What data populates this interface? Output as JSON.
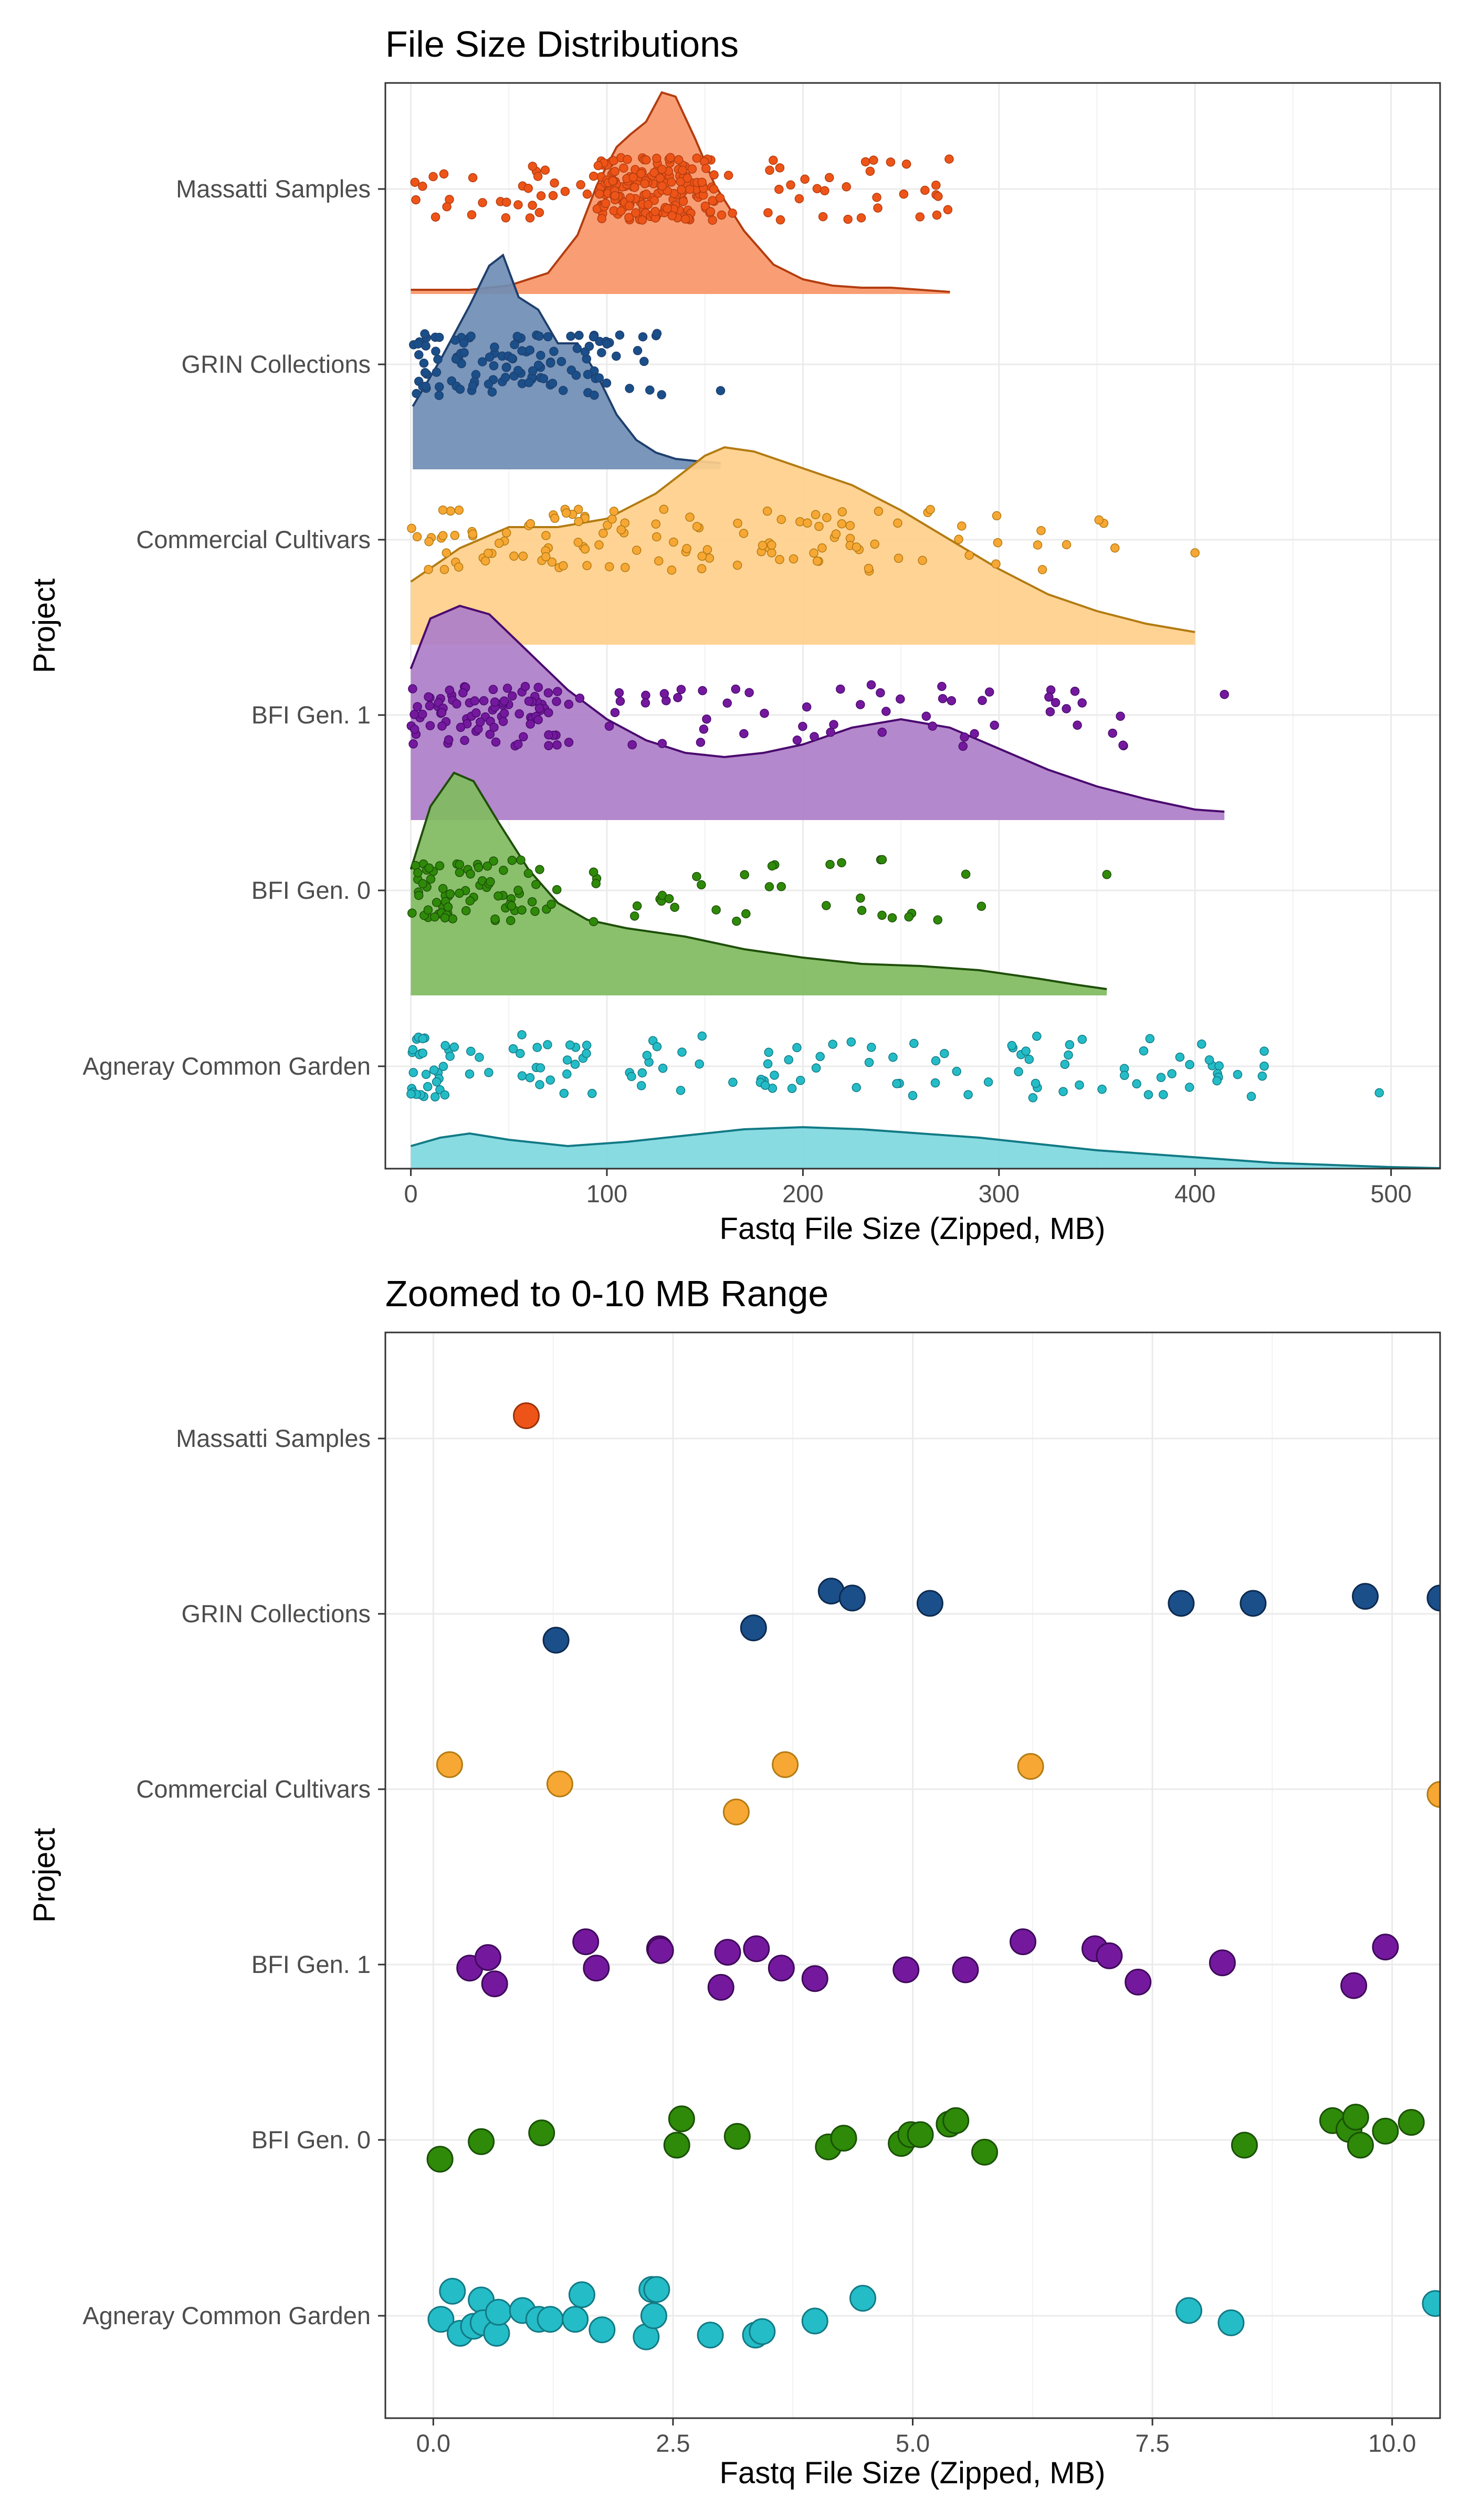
{
  "chart_data": [
    {
      "type": "raincloud",
      "title": "File Size Distributions",
      "xlabel": "Fastq File Size (Zipped, MB)",
      "ylabel": "Project",
      "xlim": [
        -13,
        525
      ],
      "xticks": [
        "0",
        "100",
        "200",
        "300",
        "400",
        "500"
      ],
      "xtick_values": [
        0,
        100,
        200,
        300,
        400,
        500
      ],
      "grid": true,
      "legend": "none",
      "categories": [
        "Massatti Samples",
        "GRIN Collections",
        "Commercial Cultivars",
        "BFI Gen. 1",
        "BFI Gen. 0",
        "Agneray Common Garden"
      ],
      "series": [
        {
          "name": "Massatti Samples",
          "fill": "#f99668",
          "line": "#b33d10",
          "point": "#ee5418",
          "range": [
            0,
            275
          ],
          "density": [
            [
              0,
              0.02
            ],
            [
              30,
              0.02
            ],
            [
              50,
              0.04
            ],
            [
              70,
              0.1
            ],
            [
              85,
              0.28
            ],
            [
              95,
              0.52
            ],
            [
              105,
              0.7
            ],
            [
              112,
              0.76
            ],
            [
              120,
              0.82
            ],
            [
              128,
              0.96
            ],
            [
              135,
              0.94
            ],
            [
              145,
              0.74
            ],
            [
              155,
              0.52
            ],
            [
              170,
              0.3
            ],
            [
              185,
              0.14
            ],
            [
              200,
              0.07
            ],
            [
              215,
              0.04
            ],
            [
              230,
              0.03
            ],
            [
              245,
              0.03
            ],
            [
              260,
              0.02
            ],
            [
              275,
              0.01
            ]
          ],
          "points_seed": 11,
          "points_n": 260,
          "points_dist": [
            [
              95,
              155,
              0.74
            ],
            [
              0,
              95,
              0.12
            ],
            [
              155,
              275,
              0.14
            ]
          ]
        },
        {
          "name": "GRIN Collections",
          "fill": "#6f8db4",
          "line": "#1e3f6d",
          "point": "#1b4f8a",
          "range": [
            1,
            158
          ],
          "density": [
            [
              1,
              0.3
            ],
            [
              15,
              0.52
            ],
            [
              30,
              0.78
            ],
            [
              40,
              0.97
            ],
            [
              47,
              1.02
            ],
            [
              55,
              0.82
            ],
            [
              65,
              0.76
            ],
            [
              75,
              0.6
            ],
            [
              85,
              0.6
            ],
            [
              95,
              0.45
            ],
            [
              105,
              0.26
            ],
            [
              115,
              0.14
            ],
            [
              125,
              0.08
            ],
            [
              135,
              0.05
            ],
            [
              145,
              0.04
            ],
            [
              158,
              0.03
            ]
          ],
          "points_seed": 23,
          "points_n": 120,
          "points_dist": [
            [
              0,
              100,
              0.9
            ],
            [
              100,
              130,
              0.1
            ]
          ],
          "extra_points": [
            158
          ]
        },
        {
          "name": "Commercial Cultivars",
          "fill": "#ffcf8a",
          "line": "#b37b12",
          "point": "#f7a733",
          "range": [
            0,
            400
          ],
          "density": [
            [
              0,
              0.3
            ],
            [
              25,
              0.46
            ],
            [
              50,
              0.56
            ],
            [
              75,
              0.56
            ],
            [
              100,
              0.6
            ],
            [
              125,
              0.72
            ],
            [
              150,
              0.9
            ],
            [
              160,
              0.94
            ],
            [
              175,
              0.92
            ],
            [
              200,
              0.84
            ],
            [
              225,
              0.76
            ],
            [
              250,
              0.64
            ],
            [
              275,
              0.5
            ],
            [
              300,
              0.36
            ],
            [
              325,
              0.24
            ],
            [
              350,
              0.16
            ],
            [
              375,
              0.1
            ],
            [
              400,
              0.06
            ]
          ],
          "points_seed": 37,
          "points_n": 130,
          "points_dist": [
            [
              0,
              240,
              0.86
            ],
            [
              240,
              360,
              0.14
            ]
          ],
          "extra_points": [
            400
          ]
        },
        {
          "name": "BFI Gen. 1",
          "fill": "#ae7ec8",
          "line": "#4a0a6f",
          "point": "#74199e",
          "range": [
            0,
            415
          ],
          "density": [
            [
              0,
              0.72
            ],
            [
              10,
              0.96
            ],
            [
              25,
              1.02
            ],
            [
              40,
              0.98
            ],
            [
              60,
              0.8
            ],
            [
              80,
              0.62
            ],
            [
              100,
              0.48
            ],
            [
              120,
              0.38
            ],
            [
              140,
              0.32
            ],
            [
              160,
              0.3
            ],
            [
              180,
              0.32
            ],
            [
              200,
              0.36
            ],
            [
              225,
              0.44
            ],
            [
              250,
              0.48
            ],
            [
              275,
              0.44
            ],
            [
              300,
              0.34
            ],
            [
              325,
              0.24
            ],
            [
              350,
              0.16
            ],
            [
              375,
              0.1
            ],
            [
              400,
              0.05
            ],
            [
              415,
              0.04
            ]
          ],
          "points_seed": 41,
          "points_n": 150,
          "points_dist": [
            [
              0,
              75,
              0.6
            ],
            [
              75,
              370,
              0.4
            ]
          ],
          "extra_points": [
            415
          ]
        },
        {
          "name": "BFI Gen. 0",
          "fill": "#80bb60",
          "line": "#1f4f0a",
          "point": "#2e8a08",
          "range": [
            0,
            355
          ],
          "density": [
            [
              0,
              0.6
            ],
            [
              10,
              0.9
            ],
            [
              22,
              1.06
            ],
            [
              32,
              1.02
            ],
            [
              45,
              0.82
            ],
            [
              60,
              0.6
            ],
            [
              75,
              0.44
            ],
            [
              90,
              0.36
            ],
            [
              110,
              0.32
            ],
            [
              140,
              0.28
            ],
            [
              170,
              0.22
            ],
            [
              200,
              0.18
            ],
            [
              230,
              0.15
            ],
            [
              260,
              0.14
            ],
            [
              290,
              0.12
            ],
            [
              320,
              0.08
            ],
            [
              340,
              0.05
            ],
            [
              355,
              0.03
            ]
          ],
          "points_seed": 53,
          "points_n": 110,
          "points_dist": [
            [
              0,
              75,
              0.68
            ],
            [
              75,
              300,
              0.32
            ]
          ],
          "extra_points": [
            355
          ]
        },
        {
          "name": "Agneray Common Garden",
          "fill": "#7fd8e0",
          "line": "#127a85",
          "point": "#24bcc7",
          "range": [
            0,
            525
          ],
          "density": [
            [
              0,
              0.12
            ],
            [
              15,
              0.16
            ],
            [
              30,
              0.18
            ],
            [
              50,
              0.15
            ],
            [
              80,
              0.12
            ],
            [
              110,
              0.14
            ],
            [
              140,
              0.17
            ],
            [
              170,
              0.2
            ],
            [
              200,
              0.21
            ],
            [
              230,
              0.2
            ],
            [
              260,
              0.18
            ],
            [
              290,
              0.16
            ],
            [
              320,
              0.13
            ],
            [
              350,
              0.1
            ],
            [
              380,
              0.08
            ],
            [
              410,
              0.06
            ],
            [
              440,
              0.04
            ],
            [
              470,
              0.03
            ],
            [
              500,
              0.02
            ],
            [
              525,
              0.015
            ]
          ],
          "points_seed": 67,
          "points_n": 140,
          "points_dist": [
            [
              0,
              20,
              0.2
            ],
            [
              20,
              440,
              0.8
            ]
          ],
          "extra_points": [
            494
          ]
        }
      ]
    },
    {
      "type": "scatter",
      "title": "Zoomed to 0-10 MB Range",
      "xlabel": "Fastq File Size (Zipped, MB)",
      "ylabel": "Project",
      "xlim": [
        -0.5,
        10.5
      ],
      "xticks": [
        "0.0",
        "2.5",
        "5.0",
        "7.5",
        "10.0"
      ],
      "xtick_values": [
        0,
        2.5,
        5,
        7.5,
        10
      ],
      "grid": true,
      "legend": "none",
      "categories": [
        "Massatti Samples",
        "GRIN Collections",
        "Commercial Cultivars",
        "BFI Gen. 1",
        "BFI Gen. 0",
        "Agneray Common Garden"
      ],
      "series": [
        {
          "name": "Massatti Samples",
          "color": "#ee5418",
          "stroke": "#9a3208",
          "points": [
            [
              0.97,
              0.13
            ]
          ]
        },
        {
          "name": "GRIN Collections",
          "color": "#1b4f8a",
          "stroke": "#0c2a4f",
          "points": [
            [
              1.28,
              -0.15
            ],
            [
              3.34,
              -0.08
            ],
            [
              4.15,
              0.13
            ],
            [
              4.37,
              0.09
            ],
            [
              5.18,
              0.06
            ],
            [
              7.8,
              0.06
            ],
            [
              8.55,
              0.06
            ],
            [
              9.72,
              0.1
            ],
            [
              10.5,
              0.09
            ]
          ]
        },
        {
          "name": "Commercial Cultivars",
          "color": "#f7a733",
          "stroke": "#b37b12",
          "points": [
            [
              0.17,
              0.14
            ],
            [
              1.32,
              0.03
            ],
            [
              3.16,
              -0.13
            ],
            [
              3.67,
              0.14
            ],
            [
              6.23,
              0.13
            ],
            [
              10.5,
              -0.03
            ]
          ]
        },
        {
          "name": "BFI Gen. 1",
          "color": "#74199e",
          "stroke": "#3f0a5a",
          "points": [
            [
              0.38,
              -0.02
            ],
            [
              0.57,
              0.04
            ],
            [
              0.64,
              -0.11
            ],
            [
              1.59,
              0.13
            ],
            [
              1.7,
              -0.02
            ],
            [
              2.36,
              0.09
            ],
            [
              2.37,
              0.08
            ],
            [
              3.0,
              -0.13
            ],
            [
              3.07,
              0.07
            ],
            [
              3.37,
              0.09
            ],
            [
              3.63,
              -0.02
            ],
            [
              3.98,
              -0.08
            ],
            [
              4.93,
              -0.03
            ],
            [
              5.55,
              -0.03
            ],
            [
              6.15,
              0.13
            ],
            [
              6.9,
              0.09
            ],
            [
              7.05,
              0.05
            ],
            [
              7.35,
              -0.1
            ],
            [
              8.23,
              0.01
            ],
            [
              9.6,
              -0.12
            ],
            [
              9.93,
              0.1
            ]
          ]
        },
        {
          "name": "BFI Gen. 0",
          "color": "#2e8a08",
          "stroke": "#1a5005",
          "points": [
            [
              0.07,
              -0.11
            ],
            [
              0.5,
              -0.01
            ],
            [
              1.13,
              0.04
            ],
            [
              2.54,
              -0.03
            ],
            [
              2.59,
              0.12
            ],
            [
              3.17,
              0.02
            ],
            [
              4.12,
              -0.04
            ],
            [
              4.28,
              0.01
            ],
            [
              4.88,
              -0.02
            ],
            [
              4.98,
              0.03
            ],
            [
              5.08,
              0.03
            ],
            [
              5.38,
              0.09
            ],
            [
              5.45,
              0.11
            ],
            [
              5.75,
              -0.07
            ],
            [
              8.46,
              -0.03
            ],
            [
              9.38,
              0.11
            ],
            [
              9.55,
              0.06
            ],
            [
              9.62,
              0.13
            ],
            [
              9.67,
              -0.03
            ],
            [
              9.93,
              0.05
            ],
            [
              10.2,
              0.1
            ]
          ]
        },
        {
          "name": "Agneray Common Garden",
          "color": "#24bcc7",
          "stroke": "#127a85",
          "points": [
            [
              0.08,
              -0.02
            ],
            [
              0.2,
              0.14
            ],
            [
              0.28,
              -0.1
            ],
            [
              0.42,
              -0.06
            ],
            [
              0.5,
              0.09
            ],
            [
              0.52,
              -0.04
            ],
            [
              0.66,
              -0.1
            ],
            [
              0.68,
              0.02
            ],
            [
              0.93,
              0.03
            ],
            [
              1.1,
              -0.02
            ],
            [
              1.22,
              -0.02
            ],
            [
              1.48,
              -0.02
            ],
            [
              1.55,
              0.12
            ],
            [
              1.76,
              -0.08
            ],
            [
              2.22,
              -0.12
            ],
            [
              2.28,
              0.15
            ],
            [
              2.33,
              0.15
            ],
            [
              2.3,
              0.0
            ],
            [
              2.89,
              -0.11
            ],
            [
              3.36,
              -0.11
            ],
            [
              3.43,
              -0.09
            ],
            [
              3.98,
              -0.03
            ],
            [
              4.48,
              0.1
            ],
            [
              7.88,
              0.03
            ],
            [
              8.32,
              -0.04
            ],
            [
              10.45,
              0.07
            ]
          ]
        }
      ]
    }
  ]
}
